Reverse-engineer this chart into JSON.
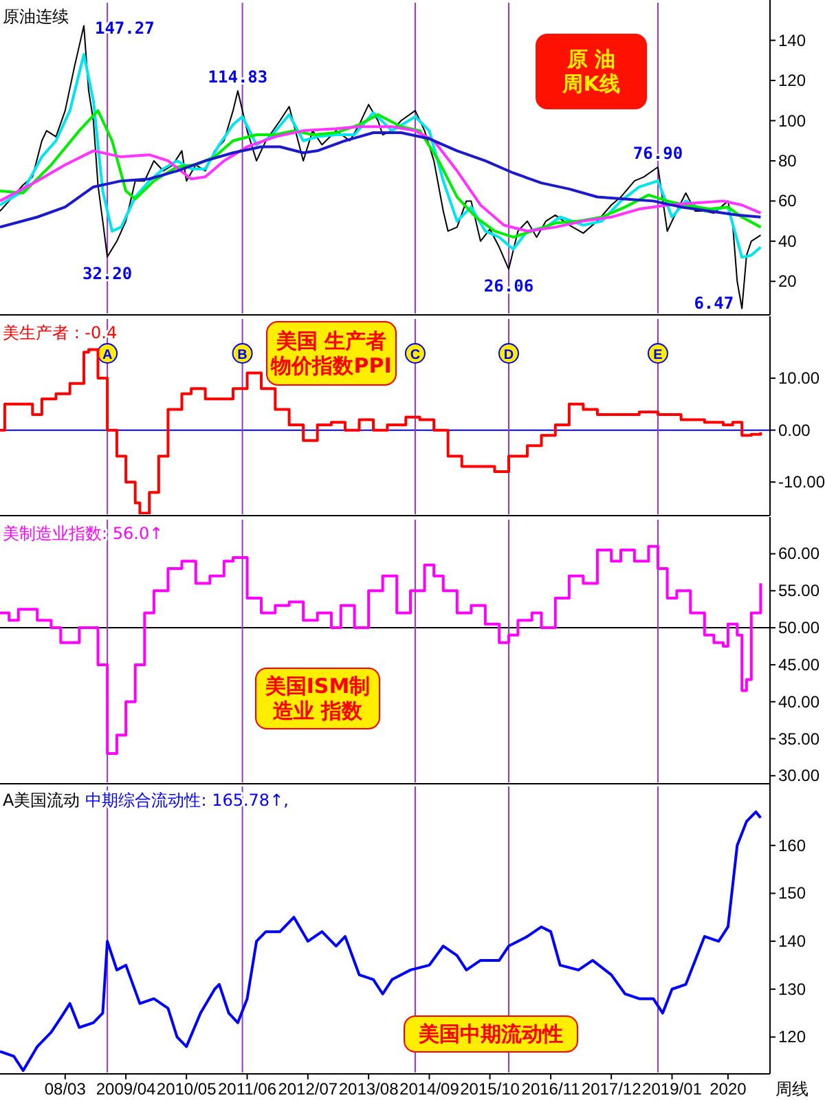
{
  "chart_data": [
    {
      "type": "line",
      "title": "原油连续",
      "xlim": [
        "2007-01",
        "2020-10"
      ],
      "ylim": [
        4,
        158.7
      ],
      "yticks": [
        20,
        40,
        60,
        80,
        100,
        120,
        140
      ],
      "tick_labels": "y",
      "legend": false,
      "grid": false,
      "annotations": [
        "原 油周K线",
        {
          "text": "147.27",
          "x": "2008-07",
          "y": 147.27
        },
        {
          "text": "32.20",
          "x": "2008-12",
          "y": 32.2
        },
        {
          "text": "114.83",
          "x": "2011-04",
          "y": 114.83
        },
        {
          "text": "26.06",
          "x": "2016-02",
          "y": 26.06
        },
        {
          "text": "76.90",
          "x": "2018-10",
          "y": 76.9
        },
        {
          "text": "6.47",
          "x": "2020-04",
          "y": 6.47
        }
      ],
      "ref_lines": [
        {
          "axis": "x",
          "value": "2008-12",
          "color": "#9933cc"
        },
        {
          "axis": "x",
          "value": "2011-05",
          "color": "#9933cc"
        },
        {
          "axis": "x",
          "value": "2014-06",
          "color": "#9933cc"
        },
        {
          "axis": "x",
          "value": "2016-02",
          "color": "#9933cc"
        },
        {
          "axis": "x",
          "value": "2018-10",
          "color": "#9933cc"
        }
      ],
      "series": [
        {
          "color": "#000000",
          "x": [
            "2007-01",
            "2007-03",
            "2007-06",
            "2007-08",
            "2007-10",
            "2007-11",
            "2008-01",
            "2008-03",
            "2008-05",
            "2008-07",
            "2008-08",
            "2008-09",
            "2008-10",
            "2008-11",
            "2008-12",
            "2009-02",
            "2009-04",
            "2009-06",
            "2009-08",
            "2009-10",
            "2009-12",
            "2010-02",
            "2010-04",
            "2010-05",
            "2010-07",
            "2010-09",
            "2010-11",
            "2011-01",
            "2011-03",
            "2011-04",
            "2011-06",
            "2011-08",
            "2011-10",
            "2012-01",
            "2012-03",
            "2012-06",
            "2012-08",
            "2012-10",
            "2013-01",
            "2013-04",
            "2013-06",
            "2013-08",
            "2013-10",
            "2013-11",
            "2014-01",
            "2014-03",
            "2014-06",
            "2014-08",
            "2014-10",
            "2014-12",
            "2015-01",
            "2015-03",
            "2015-05",
            "2015-06",
            "2015-08",
            "2015-10",
            "2015-12",
            "2016-02",
            "2016-04",
            "2016-06",
            "2016-08",
            "2016-10",
            "2016-12",
            "2017-03",
            "2017-06",
            "2017-09",
            "2017-12",
            "2018-02",
            "2018-05",
            "2018-07",
            "2018-10",
            "2018-12",
            "2019-02",
            "2019-04",
            "2019-06",
            "2019-08",
            "2019-10",
            "2020-01",
            "2020-02",
            "2020-03",
            "2020-04",
            "2020-05",
            "2020-06",
            "2020-08"
          ],
          "values": [
            55,
            60,
            68,
            72,
            90,
            95,
            92,
            105,
            127,
            147.27,
            115,
            100,
            68,
            50,
            32.2,
            40,
            50,
            70,
            70,
            80,
            75,
            78,
            85,
            70,
            78,
            75,
            85,
            90,
            105,
            114.83,
            95,
            80,
            90,
            100,
            107,
            80,
            95,
            88,
            95,
            90,
            98,
            108,
            100,
            93,
            95,
            100,
            105,
            95,
            80,
            55,
            45,
            47,
            60,
            60,
            40,
            46,
            37,
            26.06,
            45,
            50,
            42,
            50,
            53,
            48,
            44,
            50,
            58,
            62,
            70,
            72,
            76.9,
            45,
            55,
            64,
            55,
            55,
            54,
            60,
            48,
            20,
            6.47,
            33,
            40,
            43
          ]
        },
        {
          "color": "#00e5ee",
          "x": [
            "2007-01",
            "2007-06",
            "2007-10",
            "2008-01",
            "2008-04",
            "2008-07",
            "2008-09",
            "2008-11",
            "2009-01",
            "2009-03",
            "2009-06",
            "2009-09",
            "2009-12",
            "2010-03",
            "2010-06",
            "2010-09",
            "2010-12",
            "2011-03",
            "2011-05",
            "2011-08",
            "2011-11",
            "2012-03",
            "2012-06",
            "2012-09",
            "2013-01",
            "2013-05",
            "2013-09",
            "2014-01",
            "2014-06",
            "2014-09",
            "2014-12",
            "2015-03",
            "2015-06",
            "2015-09",
            "2015-12",
            "2016-03",
            "2016-06",
            "2016-10",
            "2017-01",
            "2017-06",
            "2017-10",
            "2018-02",
            "2018-06",
            "2018-10",
            "2019-01",
            "2019-04",
            "2019-08",
            "2020-01",
            "2020-04",
            "2020-06",
            "2020-08"
          ],
          "values": [
            58,
            65,
            82,
            90,
            105,
            133,
            110,
            65,
            45,
            47,
            62,
            70,
            76,
            80,
            76,
            76,
            88,
            98,
            102,
            88,
            92,
            103,
            90,
            92,
            93,
            93,
            104,
            95,
            102,
            95,
            70,
            50,
            57,
            45,
            42,
            36,
            45,
            47,
            52,
            48,
            50,
            60,
            67,
            70,
            52,
            60,
            55,
            57,
            32,
            33,
            37
          ]
        },
        {
          "color": "#00ee00",
          "x": [
            "2007-01",
            "2007-06",
            "2007-12",
            "2008-06",
            "2008-10",
            "2009-01",
            "2009-04",
            "2009-06",
            "2009-10",
            "2010-03",
            "2010-07",
            "2010-11",
            "2011-03",
            "2011-08",
            "2011-12",
            "2012-04",
            "2012-08",
            "2013-01",
            "2013-06",
            "2013-10",
            "2014-03",
            "2014-07",
            "2014-11",
            "2015-03",
            "2015-07",
            "2015-11",
            "2016-03",
            "2016-07",
            "2016-12",
            "2017-05",
            "2017-10",
            "2018-03",
            "2018-08",
            "2018-12",
            "2019-04",
            "2019-09",
            "2020-01",
            "2020-04",
            "2020-08"
          ],
          "values": [
            65,
            64,
            78,
            95,
            105,
            90,
            65,
            61,
            70,
            77,
            78,
            82,
            90,
            93,
            93,
            95,
            93,
            94,
            98,
            103,
            97,
            95,
            80,
            62,
            52,
            45,
            42,
            45,
            49,
            50,
            52,
            57,
            63,
            60,
            58,
            56,
            57,
            52,
            47
          ]
        },
        {
          "color": "#ff33ff",
          "x": [
            "2007-01",
            "2007-09",
            "2008-03",
            "2008-09",
            "2009-03",
            "2009-09",
            "2010-01",
            "2010-06",
            "2010-09",
            "2011-01",
            "2011-06",
            "2011-12",
            "2012-06",
            "2013-01",
            "2013-06",
            "2014-01",
            "2014-06",
            "2014-10",
            "2015-03",
            "2015-08",
            "2016-01",
            "2016-06",
            "2016-12",
            "2017-06",
            "2017-12",
            "2018-06",
            "2018-12",
            "2019-06",
            "2019-12",
            "2020-04",
            "2020-08"
          ],
          "values": [
            60,
            70,
            78,
            85,
            82,
            83,
            80,
            71,
            72,
            80,
            87,
            92,
            95,
            96,
            97,
            97,
            95,
            90,
            75,
            58,
            48,
            45,
            47,
            50,
            52,
            56,
            58,
            59,
            60,
            58,
            54
          ]
        },
        {
          "color": "#1a1acc",
          "x": [
            "2007-01",
            "2007-09",
            "2008-03",
            "2008-09",
            "2009-03",
            "2009-09",
            "2010-03",
            "2010-09",
            "2011-03",
            "2011-09",
            "2012-01",
            "2012-06",
            "2012-09",
            "2013-03",
            "2013-09",
            "2014-03",
            "2014-09",
            "2015-03",
            "2015-09",
            "2016-03",
            "2016-09",
            "2017-03",
            "2017-09",
            "2018-03",
            "2018-09",
            "2019-03",
            "2019-09",
            "2020-03",
            "2020-08"
          ],
          "values": [
            47,
            52,
            57,
            67,
            70,
            71,
            75,
            80,
            84,
            87,
            87,
            84,
            85,
            90,
            94,
            94,
            91,
            85,
            80,
            74,
            69,
            66,
            62,
            61,
            60,
            57,
            55,
            53,
            52
          ]
        }
      ]
    },
    {
      "type": "step",
      "xlim": [
        "2007-01",
        "2020-10"
      ],
      "ylim": [
        -16.2,
        21.4
      ],
      "yticks": [
        {
          "value": 10,
          "label": "10.00"
        },
        {
          "value": 0,
          "label": "0.00"
        },
        {
          "value": -10,
          "label": "-10.00"
        }
      ],
      "tick_labels": "y",
      "legend": false,
      "grid": false,
      "annotations": [
        "美国 生产者物价指数PPI"
      ],
      "ref_lines": [
        {
          "axis": "y",
          "value": 0,
          "color": "#0000ff"
        },
        {
          "axis": "x",
          "value": "2008-12",
          "label": "A",
          "color": "#9933cc"
        },
        {
          "axis": "x",
          "value": "2011-05",
          "label": "B",
          "color": "#9933cc"
        },
        {
          "axis": "x",
          "value": "2014-06",
          "label": "C",
          "color": "#9933cc"
        },
        {
          "axis": "x",
          "value": "2016-02",
          "label": "D",
          "color": "#9933cc"
        },
        {
          "axis": "x",
          "value": "2018-10",
          "label": "E",
          "color": "#9933cc"
        }
      ],
      "series": [
        {
          "name": "美生产者 : -0.4",
          "color": "#ff0000",
          "x": [
            "2007-01",
            "2007-02",
            "2007-06",
            "2007-08",
            "2007-10",
            "2008-01",
            "2008-04",
            "2008-07",
            "2008-08",
            "2008-10",
            "2008-12",
            "2009-02",
            "2009-04",
            "2009-06",
            "2009-07",
            "2009-09",
            "2009-11",
            "2010-01",
            "2010-04",
            "2010-06",
            "2010-09",
            "2010-12",
            "2011-03",
            "2011-06",
            "2011-09",
            "2011-12",
            "2012-03",
            "2012-06",
            "2012-09",
            "2012-12",
            "2013-03",
            "2013-06",
            "2013-09",
            "2013-12",
            "2014-04",
            "2014-07",
            "2014-10",
            "2015-01",
            "2015-04",
            "2015-08",
            "2015-11",
            "2016-02",
            "2016-06",
            "2016-09",
            "2016-12",
            "2017-03",
            "2017-06",
            "2017-09",
            "2018-01",
            "2018-06",
            "2018-10",
            "2019-03",
            "2019-08",
            "2019-12",
            "2020-02",
            "2020-04",
            "2020-06",
            "2020-08"
          ],
          "values": [
            0,
            5,
            5,
            3,
            6,
            7,
            9,
            15,
            15.5,
            10,
            0,
            -5,
            -10,
            -14,
            -16,
            -12,
            -5,
            4,
            7,
            8,
            6,
            6,
            8,
            11,
            8,
            4,
            1,
            -2,
            1,
            1.5,
            0,
            2,
            0,
            1,
            2.5,
            2,
            0,
            -5,
            -7,
            -7,
            -8,
            -5,
            -3,
            -1,
            1,
            5,
            4,
            3,
            3,
            3.5,
            3,
            2,
            1.5,
            1,
            1.5,
            -1,
            -0.8,
            -0.4
          ]
        }
      ]
    },
    {
      "type": "step",
      "xlim": [
        "2007-01",
        "2020-10"
      ],
      "ylim": [
        29.1,
        64.6
      ],
      "yticks": [
        {
          "value": 30,
          "label": "30.00"
        },
        {
          "value": 35,
          "label": "35.00"
        },
        {
          "value": 40,
          "label": "40.00"
        },
        {
          "value": 45,
          "label": "45.00"
        },
        {
          "value": 50,
          "label": "50.00"
        },
        {
          "value": 55,
          "label": "55.00"
        },
        {
          "value": 60,
          "label": "60.00"
        }
      ],
      "tick_labels": "y",
      "legend": false,
      "grid": false,
      "annotations": [
        "美国ISM制造业  指数"
      ],
      "ref_lines": [
        {
          "axis": "y",
          "value": 50,
          "color": "#000000"
        },
        {
          "axis": "x",
          "value": "2008-12",
          "color": "#9933cc"
        },
        {
          "axis": "x",
          "value": "2011-05",
          "color": "#9933cc"
        },
        {
          "axis": "x",
          "value": "2014-06",
          "color": "#9933cc"
        },
        {
          "axis": "x",
          "value": "2016-02",
          "color": "#9933cc"
        },
        {
          "axis": "x",
          "value": "2018-10",
          "color": "#9933cc"
        }
      ],
      "series": [
        {
          "name": "美制造业指数: 56.0↑",
          "color": "#ff00ff",
          "x": [
            "2007-01",
            "2007-03",
            "2007-05",
            "2007-07",
            "2007-09",
            "2007-12",
            "2008-02",
            "2008-06",
            "2008-09",
            "2008-10",
            "2008-12",
            "2009-02",
            "2009-04",
            "2009-06",
            "2009-08",
            "2009-10",
            "2010-01",
            "2010-04",
            "2010-07",
            "2010-10",
            "2011-01",
            "2011-03",
            "2011-06",
            "2011-09",
            "2011-12",
            "2012-03",
            "2012-06",
            "2012-09",
            "2012-12",
            "2013-02",
            "2013-05",
            "2013-08",
            "2013-11",
            "2014-02",
            "2014-05",
            "2014-08",
            "2014-10",
            "2014-12",
            "2015-03",
            "2015-06",
            "2015-09",
            "2015-12",
            "2016-02",
            "2016-04",
            "2016-07",
            "2016-09",
            "2016-12",
            "2017-03",
            "2017-06",
            "2017-09",
            "2017-12",
            "2018-02",
            "2018-05",
            "2018-08",
            "2018-10",
            "2018-12",
            "2019-02",
            "2019-05",
            "2019-08",
            "2019-10",
            "2019-12",
            "2020-01",
            "2020-03",
            "2020-04",
            "2020-05",
            "2020-06",
            "2020-08"
          ],
          "values": [
            52,
            51,
            52.5,
            52.5,
            51,
            50,
            48,
            50,
            50,
            45,
            33,
            35.5,
            40,
            45,
            52,
            55,
            58,
            59,
            56,
            57,
            59,
            59.5,
            54,
            52,
            53,
            53.5,
            51,
            52,
            50,
            53,
            50,
            55,
            57,
            52,
            55,
            58.5,
            57,
            55,
            52,
            53,
            50.5,
            48,
            49,
            51,
            52,
            50,
            54,
            57,
            56,
            60.5,
            59,
            60.5,
            59,
            61,
            58,
            54,
            55,
            52,
            49,
            48,
            47.5,
            50.5,
            49,
            41.5,
            43,
            52,
            56
          ]
        }
      ]
    },
    {
      "type": "line",
      "title": "A美国流动",
      "xlabel": "周线",
      "xlim": [
        "2007-01",
        "2020-10"
      ],
      "ylim": [
        112.6,
        172.3
      ],
      "yticks": [
        120,
        130,
        140,
        150,
        160
      ],
      "xticks": [
        {
          "value": "2008-03",
          "label": "08/03"
        },
        {
          "value": "2009-04",
          "label": "2009/04"
        },
        {
          "value": "2010-05",
          "label": "2010/05"
        },
        {
          "value": "2011-06",
          "label": "2011/06"
        },
        {
          "value": "2012-07",
          "label": "2012/07"
        },
        {
          "value": "2013-08",
          "label": "2013/08"
        },
        {
          "value": "2014-09",
          "label": "2014/09"
        },
        {
          "value": "2015-10",
          "label": "2015/10"
        },
        {
          "value": "2016-11",
          "label": "2016/11"
        },
        {
          "value": "2017-12",
          "label": "2017/12"
        },
        {
          "value": "2019-01",
          "label": "2019/01"
        },
        {
          "value": "2020-01",
          "label": "2020"
        }
      ],
      "legend": false,
      "grid": false,
      "annotations": [
        "美国中期流动性"
      ],
      "ref_lines": [
        {
          "axis": "x",
          "value": "2008-12",
          "color": "#9933cc"
        },
        {
          "axis": "x",
          "value": "2011-05",
          "color": "#9933cc"
        },
        {
          "axis": "x",
          "value": "2014-06",
          "color": "#9933cc"
        },
        {
          "axis": "x",
          "value": "2016-02",
          "color": "#9933cc"
        },
        {
          "axis": "x",
          "value": "2018-10",
          "color": "#9933cc"
        }
      ],
      "series": [
        {
          "name": "中期综合流动性: 165.78↑,",
          "color": "#0000ff",
          "x": [
            "2007-01",
            "2007-04",
            "2007-06",
            "2007-09",
            "2007-12",
            "2008-02",
            "2008-04",
            "2008-06",
            "2008-09",
            "2008-11",
            "2008-12",
            "2009-02",
            "2009-04",
            "2009-07",
            "2009-10",
            "2010-01",
            "2010-03",
            "2010-05",
            "2010-08",
            "2010-11",
            "2010-12",
            "2011-02",
            "2011-04",
            "2011-06",
            "2011-08",
            "2011-10",
            "2012-01",
            "2012-04",
            "2012-07",
            "2012-10",
            "2013-01",
            "2013-03",
            "2013-06",
            "2013-09",
            "2013-11",
            "2014-01",
            "2014-05",
            "2014-09",
            "2014-12",
            "2015-03",
            "2015-05",
            "2015-08",
            "2015-12",
            "2016-02",
            "2016-06",
            "2016-09",
            "2016-11",
            "2017-01",
            "2017-05",
            "2017-08",
            "2017-12",
            "2018-03",
            "2018-06",
            "2018-09",
            "2018-11",
            "2019-01",
            "2019-04",
            "2019-06",
            "2019-08",
            "2019-11",
            "2020-01",
            "2020-03",
            "2020-05",
            "2020-07",
            "2020-08"
          ],
          "values": [
            117,
            116,
            113,
            118,
            121,
            124,
            127,
            122,
            123,
            125,
            140,
            134,
            135,
            127,
            128,
            126,
            120,
            118,
            125,
            130,
            131,
            125,
            123,
            128,
            140,
            142,
            142,
            145,
            140,
            142,
            139,
            141,
            133,
            132,
            129,
            132,
            134,
            135,
            139,
            137,
            134,
            136,
            136,
            139,
            141,
            143,
            142,
            135,
            134,
            136,
            133,
            129,
            128,
            128,
            125,
            130,
            131,
            136,
            141,
            140,
            143,
            160,
            165,
            167,
            165.78
          ]
        }
      ]
    }
  ]
}
